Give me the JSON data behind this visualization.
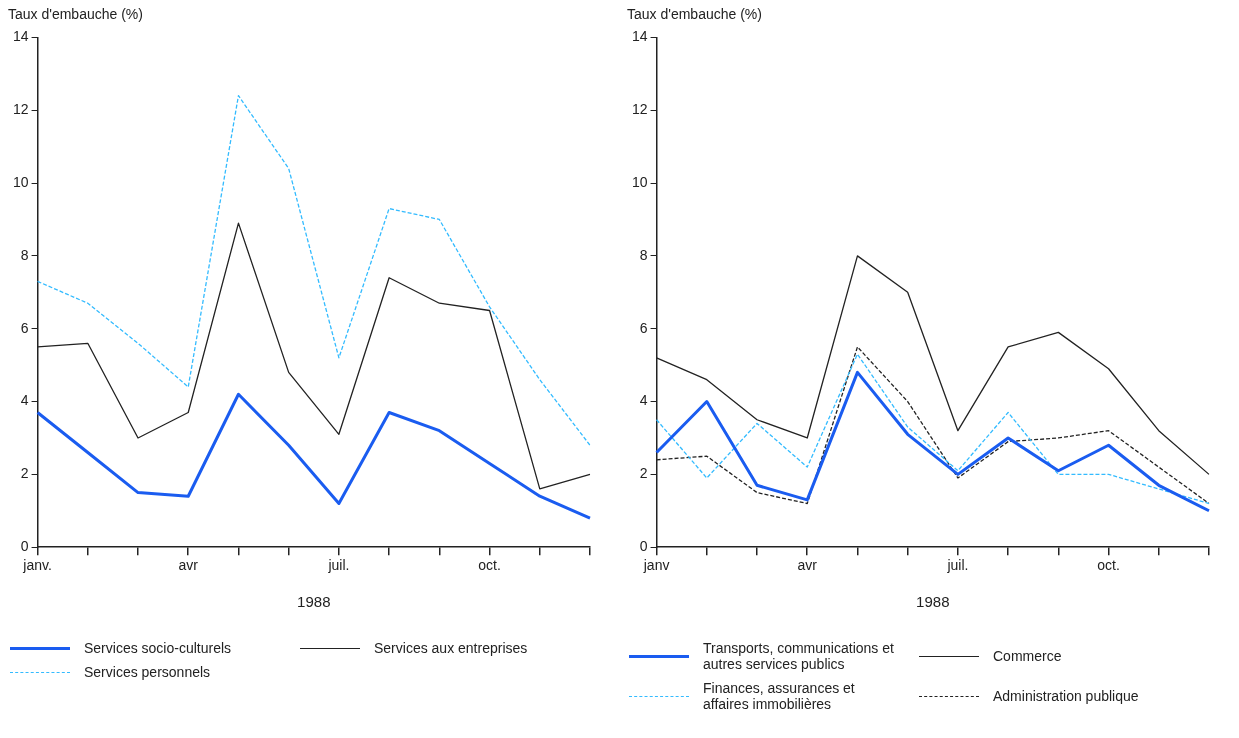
{
  "chart_data": [
    {
      "type": "line",
      "ylabel": "Taux d'embauche (%)",
      "xlabel": "1988",
      "categories": [
        "janv.",
        null,
        null,
        "avr",
        null,
        null,
        "juil.",
        null,
        null,
        "oct.",
        null,
        null
      ],
      "ylim": [
        0,
        14
      ],
      "yticks": [
        0,
        2,
        4,
        6,
        8,
        10,
        12,
        14
      ],
      "grid": false,
      "legend": "bottom",
      "marker": "none",
      "series": [
        {
          "name": "Services socio-culturels",
          "color": "#1a5cf0",
          "line_style": "solid",
          "values": [
            3.7,
            2.6,
            1.5,
            1.4,
            4.2,
            2.8,
            1.2,
            3.7,
            3.2,
            2.3,
            1.4,
            0.8
          ]
        },
        {
          "name": "Services aux entreprises",
          "color": "#222222",
          "line_style": "solid",
          "values": [
            5.5,
            5.6,
            3.0,
            3.7,
            8.9,
            4.8,
            3.1,
            7.4,
            6.7,
            6.5,
            1.6,
            2.0
          ]
        },
        {
          "name": "Services personnels",
          "color": "#33bbff",
          "line_style": "dashed",
          "values": [
            7.3,
            6.7,
            5.6,
            4.4,
            12.4,
            10.4,
            5.2,
            9.3,
            9.0,
            6.6,
            4.6,
            2.8
          ]
        }
      ]
    },
    {
      "type": "line",
      "ylabel": "Taux d'embauche (%)",
      "xlabel": "1988",
      "categories": [
        "janv",
        null,
        null,
        "avr",
        null,
        null,
        "juil.",
        null,
        null,
        "oct.",
        null,
        null
      ],
      "ylim": [
        0,
        14
      ],
      "yticks": [
        0,
        2,
        4,
        6,
        8,
        10,
        12,
        14
      ],
      "grid": false,
      "legend": "bottom",
      "marker": "none",
      "series": [
        {
          "name": "Transports, communications et autres services publics",
          "color": "#1a5cf0",
          "line_style": "solid",
          "values": [
            2.6,
            4.0,
            1.7,
            1.3,
            4.8,
            3.1,
            2.0,
            3.0,
            2.1,
            2.8,
            1.7,
            1.0
          ]
        },
        {
          "name": "Commerce",
          "color": "#222222",
          "line_style": "solid",
          "values": [
            5.2,
            4.6,
            3.5,
            3.0,
            8.0,
            7.0,
            3.2,
            5.5,
            5.9,
            4.9,
            3.2,
            2.0
          ]
        },
        {
          "name": "Finances, assurances et affaires immobilières",
          "color": "#33bbff",
          "line_style": "dashed",
          "values": [
            3.5,
            1.9,
            3.4,
            2.2,
            5.3,
            3.3,
            2.1,
            3.7,
            2.0,
            2.0,
            1.6,
            1.2
          ]
        },
        {
          "name": "Administration publique",
          "color": "#222222",
          "line_style": "dashed",
          "values": [
            2.4,
            2.5,
            1.5,
            1.2,
            5.5,
            4.0,
            1.9,
            2.9,
            3.0,
            3.2,
            2.2,
            1.2
          ]
        }
      ]
    }
  ]
}
